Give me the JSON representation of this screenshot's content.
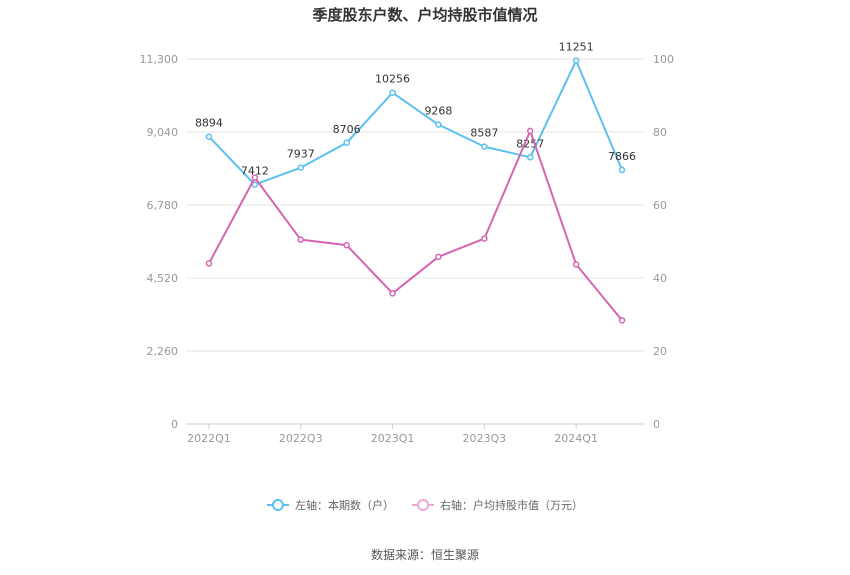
{
  "title": "季度股东户数、户均持股市值情况",
  "source": "数据来源：恒生聚源",
  "chart_data": {
    "type": "line",
    "x": [
      "2022Q1",
      "2022Q2",
      "2022Q3",
      "2022Q4",
      "2023Q1",
      "2023Q2",
      "2023Q3",
      "2023Q4",
      "2024Q1",
      "2024Q2"
    ],
    "x_tick_labels": [
      "2022Q1",
      "2022Q3",
      "2023Q1",
      "2023Q3",
      "2024Q1"
    ],
    "y_left": {
      "ticks": [
        "0",
        "2,260",
        "4,520",
        "6,780",
        "9,040",
        "11,300"
      ],
      "ylim": [
        0,
        11300
      ]
    },
    "y_right": {
      "ticks": [
        "0",
        "20",
        "40",
        "60",
        "80",
        "100"
      ],
      "ylim": [
        0,
        100
      ]
    },
    "grid": true,
    "legend_position": "bottom",
    "series": [
      {
        "name": "左轴：本期数（户）",
        "axis": "left",
        "color": "#5bc0ef",
        "values": [
          8894,
          7412,
          7937,
          8706,
          10256,
          9268,
          8587,
          8257,
          11251,
          7866
        ],
        "labels": [
          "8894",
          "7412",
          "7937",
          "8706",
          "10256",
          "9268",
          "8587",
          "8257",
          "11251",
          "7866"
        ]
      },
      {
        "name": "右轴：户均持股市值（万元）",
        "axis": "right",
        "color": "#d465b0",
        "values": [
          44.0,
          67.5,
          50.5,
          49.0,
          35.8,
          45.8,
          50.8,
          80.3,
          43.7,
          28.4
        ]
      }
    ]
  }
}
